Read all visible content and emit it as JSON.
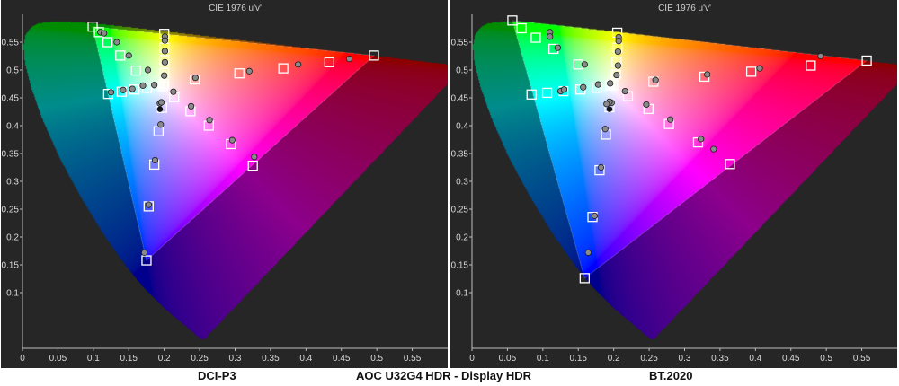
{
  "footer": {
    "left_label": "DCI-P3",
    "center_label": "AOC U32G4 HDR - Display HDR",
    "right_label": "BT.2020"
  },
  "colors": {
    "panel_bg": "#262626",
    "axis_text": "#d8d8d8",
    "target_marker": "#ffffff",
    "measured_marker": "#8a8a8a"
  },
  "chart_data": [
    {
      "type": "scatter",
      "title": "CIE 1976 u'v'",
      "xlabel": "",
      "ylabel": "",
      "xlim": [
        0,
        0.6
      ],
      "ylim": [
        0,
        0.6
      ],
      "x_ticks": [
        "0",
        "0.05",
        "0.1",
        "0.15",
        "0.2",
        "0.25",
        "0.3",
        "0.35",
        "0.4",
        "0.45",
        "0.5",
        "0.55"
      ],
      "y_ticks": [
        "0.1",
        "0.15",
        "0.2",
        "0.25",
        "0.3",
        "0.35",
        "0.4",
        "0.45",
        "0.5",
        "0.55"
      ],
      "grid": false,
      "gamut_triangle": [
        [
          0.496,
          0.526
        ],
        [
          0.099,
          0.578
        ],
        [
          0.175,
          0.158
        ]
      ],
      "series": [
        {
          "marker": "square",
          "points": [
            [
              0.496,
              0.526
            ],
            [
              0.433,
              0.514
            ],
            [
              0.368,
              0.503
            ],
            [
              0.306,
              0.494
            ],
            [
              0.243,
              0.483
            ],
            [
              0.099,
              0.578
            ],
            [
              0.108,
              0.568
            ],
            [
              0.12,
              0.55
            ],
            [
              0.138,
              0.526
            ],
            [
              0.16,
              0.499
            ],
            [
              0.2,
              0.475
            ],
            [
              0.175,
              0.158
            ],
            [
              0.178,
              0.255
            ],
            [
              0.186,
              0.33
            ],
            [
              0.192,
              0.39
            ],
            [
              0.197,
              0.432
            ],
            [
              0.2,
              0.565
            ],
            [
              0.2,
              0.54
            ],
            [
              0.2,
              0.518
            ],
            [
              0.2,
              0.495
            ],
            [
              0.198,
              0.471
            ],
            [
              0.121,
              0.457
            ],
            [
              0.14,
              0.461
            ],
            [
              0.158,
              0.465
            ],
            [
              0.176,
              0.468
            ],
            [
              0.325,
              0.328
            ],
            [
              0.294,
              0.367
            ],
            [
              0.263,
              0.4
            ],
            [
              0.237,
              0.426
            ],
            [
              0.214,
              0.451
            ]
          ]
        },
        {
          "marker": "circle",
          "points": [
            [
              0.461,
              0.52
            ],
            [
              0.389,
              0.51
            ],
            [
              0.32,
              0.498
            ],
            [
              0.244,
              0.486
            ],
            [
              0.11,
              0.568
            ],
            [
              0.115,
              0.566
            ],
            [
              0.133,
              0.55
            ],
            [
              0.15,
              0.526
            ],
            [
              0.177,
              0.5
            ],
            [
              0.172,
              0.172
            ],
            [
              0.178,
              0.258
            ],
            [
              0.187,
              0.338
            ],
            [
              0.195,
              0.402
            ],
            [
              0.194,
              0.44
            ],
            [
              0.201,
              0.56
            ],
            [
              0.201,
              0.553
            ],
            [
              0.201,
              0.534
            ],
            [
              0.201,
              0.514
            ],
            [
              0.2,
              0.49
            ],
            [
              0.125,
              0.46
            ],
            [
              0.142,
              0.464
            ],
            [
              0.155,
              0.466
            ],
            [
              0.17,
              0.472
            ],
            [
              0.186,
              0.473
            ],
            [
              0.196,
              0.442
            ],
            [
              0.327,
              0.344
            ],
            [
              0.296,
              0.374
            ],
            [
              0.264,
              0.41
            ],
            [
              0.238,
              0.435
            ],
            [
              0.213,
              0.461
            ]
          ]
        }
      ],
      "white_point": [
        0.1978,
        0.4683
      ]
    },
    {
      "type": "scatter",
      "title": "CIE 1976 u'v'",
      "xlabel": "",
      "ylabel": "",
      "xlim": [
        0,
        0.6
      ],
      "ylim": [
        0,
        0.6
      ],
      "x_ticks": [
        "0",
        "0.05",
        "0.1",
        "0.15",
        "0.2",
        "0.25",
        "0.3",
        "0.35",
        "0.4",
        "0.45",
        "0.5",
        "0.55"
      ],
      "y_ticks": [
        "0.1",
        "0.15",
        "0.2",
        "0.25",
        "0.3",
        "0.35",
        "0.4",
        "0.45",
        "0.5",
        "0.55"
      ],
      "grid": false,
      "gamut_triangle": [
        [
          0.557,
          0.517
        ],
        [
          0.057,
          0.589
        ],
        [
          0.159,
          0.126
        ]
      ],
      "series": [
        {
          "marker": "square",
          "points": [
            [
              0.557,
              0.517
            ],
            [
              0.478,
              0.508
            ],
            [
              0.394,
              0.497
            ],
            [
              0.328,
              0.488
            ],
            [
              0.256,
              0.479
            ],
            [
              0.057,
              0.589
            ],
            [
              0.07,
              0.575
            ],
            [
              0.09,
              0.558
            ],
            [
              0.115,
              0.538
            ],
            [
              0.15,
              0.51
            ],
            [
              0.195,
              0.473
            ],
            [
              0.159,
              0.126
            ],
            [
              0.17,
              0.236
            ],
            [
              0.18,
              0.32
            ],
            [
              0.189,
              0.384
            ],
            [
              0.194,
              0.433
            ],
            [
              0.205,
              0.567
            ],
            [
              0.205,
              0.54
            ],
            [
              0.204,
              0.515
            ],
            [
              0.203,
              0.492
            ],
            [
              0.199,
              0.473
            ],
            [
              0.084,
              0.456
            ],
            [
              0.106,
              0.459
            ],
            [
              0.129,
              0.462
            ],
            [
              0.153,
              0.465
            ],
            [
              0.176,
              0.468
            ],
            [
              0.364,
              0.331
            ],
            [
              0.319,
              0.37
            ],
            [
              0.278,
              0.403
            ],
            [
              0.249,
              0.43
            ],
            [
              0.22,
              0.453
            ]
          ]
        },
        {
          "marker": "circle",
          "points": [
            [
              0.492,
              0.525
            ],
            [
              0.406,
              0.503
            ],
            [
              0.332,
              0.492
            ],
            [
              0.259,
              0.482
            ],
            [
              0.11,
              0.568
            ],
            [
              0.11,
              0.56
            ],
            [
              0.121,
              0.54
            ],
            [
              0.159,
              0.51
            ],
            [
              0.195,
              0.476
            ],
            [
              0.164,
              0.172
            ],
            [
              0.173,
              0.238
            ],
            [
              0.182,
              0.325
            ],
            [
              0.188,
              0.394
            ],
            [
              0.197,
              0.441
            ],
            [
              0.207,
              0.559
            ],
            [
              0.207,
              0.552
            ],
            [
              0.206,
              0.533
            ],
            [
              0.206,
              0.508
            ],
            [
              0.204,
              0.491
            ],
            [
              0.125,
              0.462
            ],
            [
              0.13,
              0.465
            ],
            [
              0.157,
              0.469
            ],
            [
              0.178,
              0.474
            ],
            [
              0.194,
              0.443
            ],
            [
              0.341,
              0.358
            ],
            [
              0.323,
              0.376
            ],
            [
              0.28,
              0.411
            ],
            [
              0.246,
              0.438
            ],
            [
              0.216,
              0.462
            ],
            [
              0.19,
              0.439
            ]
          ]
        }
      ],
      "white_point": [
        0.1978,
        0.4683
      ]
    }
  ]
}
